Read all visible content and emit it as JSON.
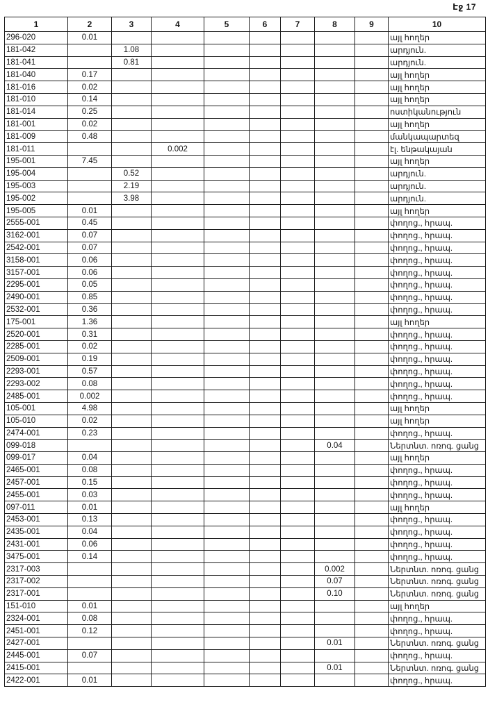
{
  "page": {
    "header": "Էջ 17"
  },
  "table": {
    "columns": [
      "1",
      "2",
      "3",
      "4",
      "5",
      "6",
      "7",
      "8",
      "9",
      "10"
    ],
    "edge_mark_glyph": ".ֆ",
    "rows": [
      {
        "code": "296-020",
        "v2": "0.01",
        "v3": "",
        "v4": "",
        "v8": "",
        "use": "այլ հողեր",
        "mark": false
      },
      {
        "code": "181-042",
        "v2": "",
        "v3": "1.08",
        "v4": "",
        "v8": "",
        "use": "արդյուն.",
        "mark": false
      },
      {
        "code": "181-041",
        "v2": "",
        "v3": "0.81",
        "v4": "",
        "v8": "",
        "use": "արդյուն.",
        "mark": false
      },
      {
        "code": "181-040",
        "v2": "0.17",
        "v3": "",
        "v4": "",
        "v8": "",
        "use": "այլ հողեր",
        "mark": false
      },
      {
        "code": "181-016",
        "v2": "0.02",
        "v3": "",
        "v4": "",
        "v8": "",
        "use": "այլ հողեր",
        "mark": false
      },
      {
        "code": "181-010",
        "v2": "0.14",
        "v3": "",
        "v4": "",
        "v8": "",
        "use": "այլ հողեր",
        "mark": false
      },
      {
        "code": "181-014",
        "v2": "0.25",
        "v3": "",
        "v4": "",
        "v8": "",
        "use": "ոստիկանություն",
        "mark": false
      },
      {
        "code": "181-001",
        "v2": "0.02",
        "v3": "",
        "v4": "",
        "v8": "",
        "use": "այլ հողեր",
        "mark": false
      },
      {
        "code": "181-009",
        "v2": "0.48",
        "v3": "",
        "v4": "",
        "v8": "",
        "use": "մանկապարտեզ",
        "mark": false
      },
      {
        "code": "181-011",
        "v2": "",
        "v3": "",
        "v4": "0.002",
        "v8": "",
        "use": "էլ. ենթակայան",
        "mark": false
      },
      {
        "code": "195-001",
        "v2": "7.45",
        "v3": "",
        "v4": "",
        "v8": "",
        "use": "այլ հողեր",
        "mark": false
      },
      {
        "code": "195-004",
        "v2": "",
        "v3": "0.52",
        "v4": "",
        "v8": "",
        "use": "արդյուն.",
        "mark": false
      },
      {
        "code": "195-003",
        "v2": "",
        "v3": "2.19",
        "v4": "",
        "v8": "",
        "use": "արդյուն.",
        "mark": false
      },
      {
        "code": "195-002",
        "v2": "",
        "v3": "3.98",
        "v4": "",
        "v8": "",
        "use": "արդյուն.",
        "mark": false
      },
      {
        "code": "195-005",
        "v2": "0.01",
        "v3": "",
        "v4": "",
        "v8": "",
        "use": "այլ հողեր",
        "mark": false
      },
      {
        "code": "2555-001",
        "v2": "0.45",
        "v3": "",
        "v4": "",
        "v8": "",
        "use": "փողոց., հրապ.",
        "mark": true
      },
      {
        "code": "3162-001",
        "v2": "0.07",
        "v3": "",
        "v4": "",
        "v8": "",
        "use": "փողոց., հրապ.",
        "mark": true
      },
      {
        "code": "2542-001",
        "v2": "0.07",
        "v3": "",
        "v4": "",
        "v8": "",
        "use": "փողոց., հրապ.",
        "mark": true
      },
      {
        "code": "3158-001",
        "v2": "0.06",
        "v3": "",
        "v4": "",
        "v8": "",
        "use": "փողոց., հրապ.",
        "mark": true
      },
      {
        "code": "3157-001",
        "v2": "0.06",
        "v3": "",
        "v4": "",
        "v8": "",
        "use": "փողոց., հրապ.",
        "mark": true
      },
      {
        "code": "2295-001",
        "v2": "0.05",
        "v3": "",
        "v4": "",
        "v8": "",
        "use": "փողոց., հրապ.",
        "mark": true
      },
      {
        "code": "2490-001",
        "v2": "0.85",
        "v3": "",
        "v4": "",
        "v8": "",
        "use": "փողոց., հրապ.",
        "mark": true
      },
      {
        "code": "2532-001",
        "v2": "0.36",
        "v3": "",
        "v4": "",
        "v8": "",
        "use": "փողոց., հրապ.",
        "mark": true
      },
      {
        "code": "175-001",
        "v2": "1.36",
        "v3": "",
        "v4": "",
        "v8": "",
        "use": "այլ հողեր",
        "mark": false
      },
      {
        "code": "2520-001",
        "v2": "0.31",
        "v3": "",
        "v4": "",
        "v8": "",
        "use": "փողոց., հրապ.",
        "mark": true
      },
      {
        "code": "2285-001",
        "v2": "0.02",
        "v3": "",
        "v4": "",
        "v8": "",
        "use": "փողոց., հրապ.",
        "mark": true
      },
      {
        "code": "2509-001",
        "v2": "0.19",
        "v3": "",
        "v4": "",
        "v8": "",
        "use": "փողոց., հրապ.",
        "mark": true
      },
      {
        "code": "2293-001",
        "v2": "0.57",
        "v3": "",
        "v4": "",
        "v8": "",
        "use": "փողոց., հրապ.",
        "mark": true
      },
      {
        "code": "2293-002",
        "v2": "0.08",
        "v3": "",
        "v4": "",
        "v8": "",
        "use": "փողոց., հրապ.",
        "mark": true
      },
      {
        "code": "2485-001",
        "v2": "0.002",
        "v3": "",
        "v4": "",
        "v8": "",
        "use": "փողոց., հրապ.",
        "mark": true
      },
      {
        "code": "105-001",
        "v2": "4.98",
        "v3": "",
        "v4": "",
        "v8": "",
        "use": "այլ հողեր",
        "mark": false
      },
      {
        "code": "105-010",
        "v2": "0.02",
        "v3": "",
        "v4": "",
        "v8": "",
        "use": "այլ հողեր",
        "mark": false
      },
      {
        "code": "2474-001",
        "v2": "0.23",
        "v3": "",
        "v4": "",
        "v8": "",
        "use": "փողոց., հրապ.",
        "mark": true
      },
      {
        "code": "099-018",
        "v2": "",
        "v3": "",
        "v4": "",
        "v8": "0.04",
        "use": "Ներտնտ. ոռոգ. ցանց",
        "mark": true
      },
      {
        "code": "099-017",
        "v2": "0.04",
        "v3": "",
        "v4": "",
        "v8": "",
        "use": "այլ հողեր",
        "mark": false
      },
      {
        "code": "2465-001",
        "v2": "0.08",
        "v3": "",
        "v4": "",
        "v8": "",
        "use": "փողոց., հրապ.",
        "mark": true
      },
      {
        "code": "2457-001",
        "v2": "0.15",
        "v3": "",
        "v4": "",
        "v8": "",
        "use": "փողոց., հրապ.",
        "mark": true
      },
      {
        "code": "2455-001",
        "v2": "0.03",
        "v3": "",
        "v4": "",
        "v8": "",
        "use": "փողոց., հրապ.",
        "mark": true
      },
      {
        "code": "097-011",
        "v2": "0.01",
        "v3": "",
        "v4": "",
        "v8": "",
        "use": "այլ հողեր",
        "mark": false
      },
      {
        "code": "2453-001",
        "v2": "0.13",
        "v3": "",
        "v4": "",
        "v8": "",
        "use": "փողոց., հրապ.",
        "mark": true
      },
      {
        "code": "2435-001",
        "v2": "0.04",
        "v3": "",
        "v4": "",
        "v8": "",
        "use": "փողոց., հրապ.",
        "mark": true
      },
      {
        "code": "2431-001",
        "v2": "0.06",
        "v3": "",
        "v4": "",
        "v8": "",
        "use": "փողոց., հրապ.",
        "mark": true
      },
      {
        "code": "3475-001",
        "v2": "0.14",
        "v3": "",
        "v4": "",
        "v8": "",
        "use": "փողոց., հրապ.",
        "mark": true
      },
      {
        "code": "2317-003",
        "v2": "",
        "v3": "",
        "v4": "",
        "v8": "0.002",
        "use": "Ներտնտ. ոռոգ. ցանց",
        "mark": true
      },
      {
        "code": "2317-002",
        "v2": "",
        "v3": "",
        "v4": "",
        "v8": "0.07",
        "use": "Ներտնտ. ոռոգ. ցանց",
        "mark": true
      },
      {
        "code": "2317-001",
        "v2": "",
        "v3": "",
        "v4": "",
        "v8": "0.10",
        "use": "Ներտնտ. ոռոգ. ցանց",
        "mark": true
      },
      {
        "code": "151-010",
        "v2": "0.01",
        "v3": "",
        "v4": "",
        "v8": "",
        "use": "այլ հողեր",
        "mark": false
      },
      {
        "code": "2324-001",
        "v2": "0.08",
        "v3": "",
        "v4": "",
        "v8": "",
        "use": "փողոց., հրապ.",
        "mark": true
      },
      {
        "code": "2451-001",
        "v2": "0.12",
        "v3": "",
        "v4": "",
        "v8": "",
        "use": "փողոց., հրապ.",
        "mark": true
      },
      {
        "code": "2427-001",
        "v2": "",
        "v3": "",
        "v4": "",
        "v8": "0.01",
        "use": "Ներտնտ. ոռոգ. ցանց",
        "mark": true
      },
      {
        "code": "2445-001",
        "v2": "0.07",
        "v3": "",
        "v4": "",
        "v8": "",
        "use": "փողոց., հրապ.",
        "mark": true
      },
      {
        "code": "2415-001",
        "v2": "",
        "v3": "",
        "v4": "",
        "v8": "0.01",
        "use": "Ներտնտ. ոռոգ. ցանց",
        "mark": true
      },
      {
        "code": "2422-001",
        "v2": "0.01",
        "v3": "",
        "v4": "",
        "v8": "",
        "use": "փողոց., հրապ.",
        "mark": true
      }
    ]
  }
}
